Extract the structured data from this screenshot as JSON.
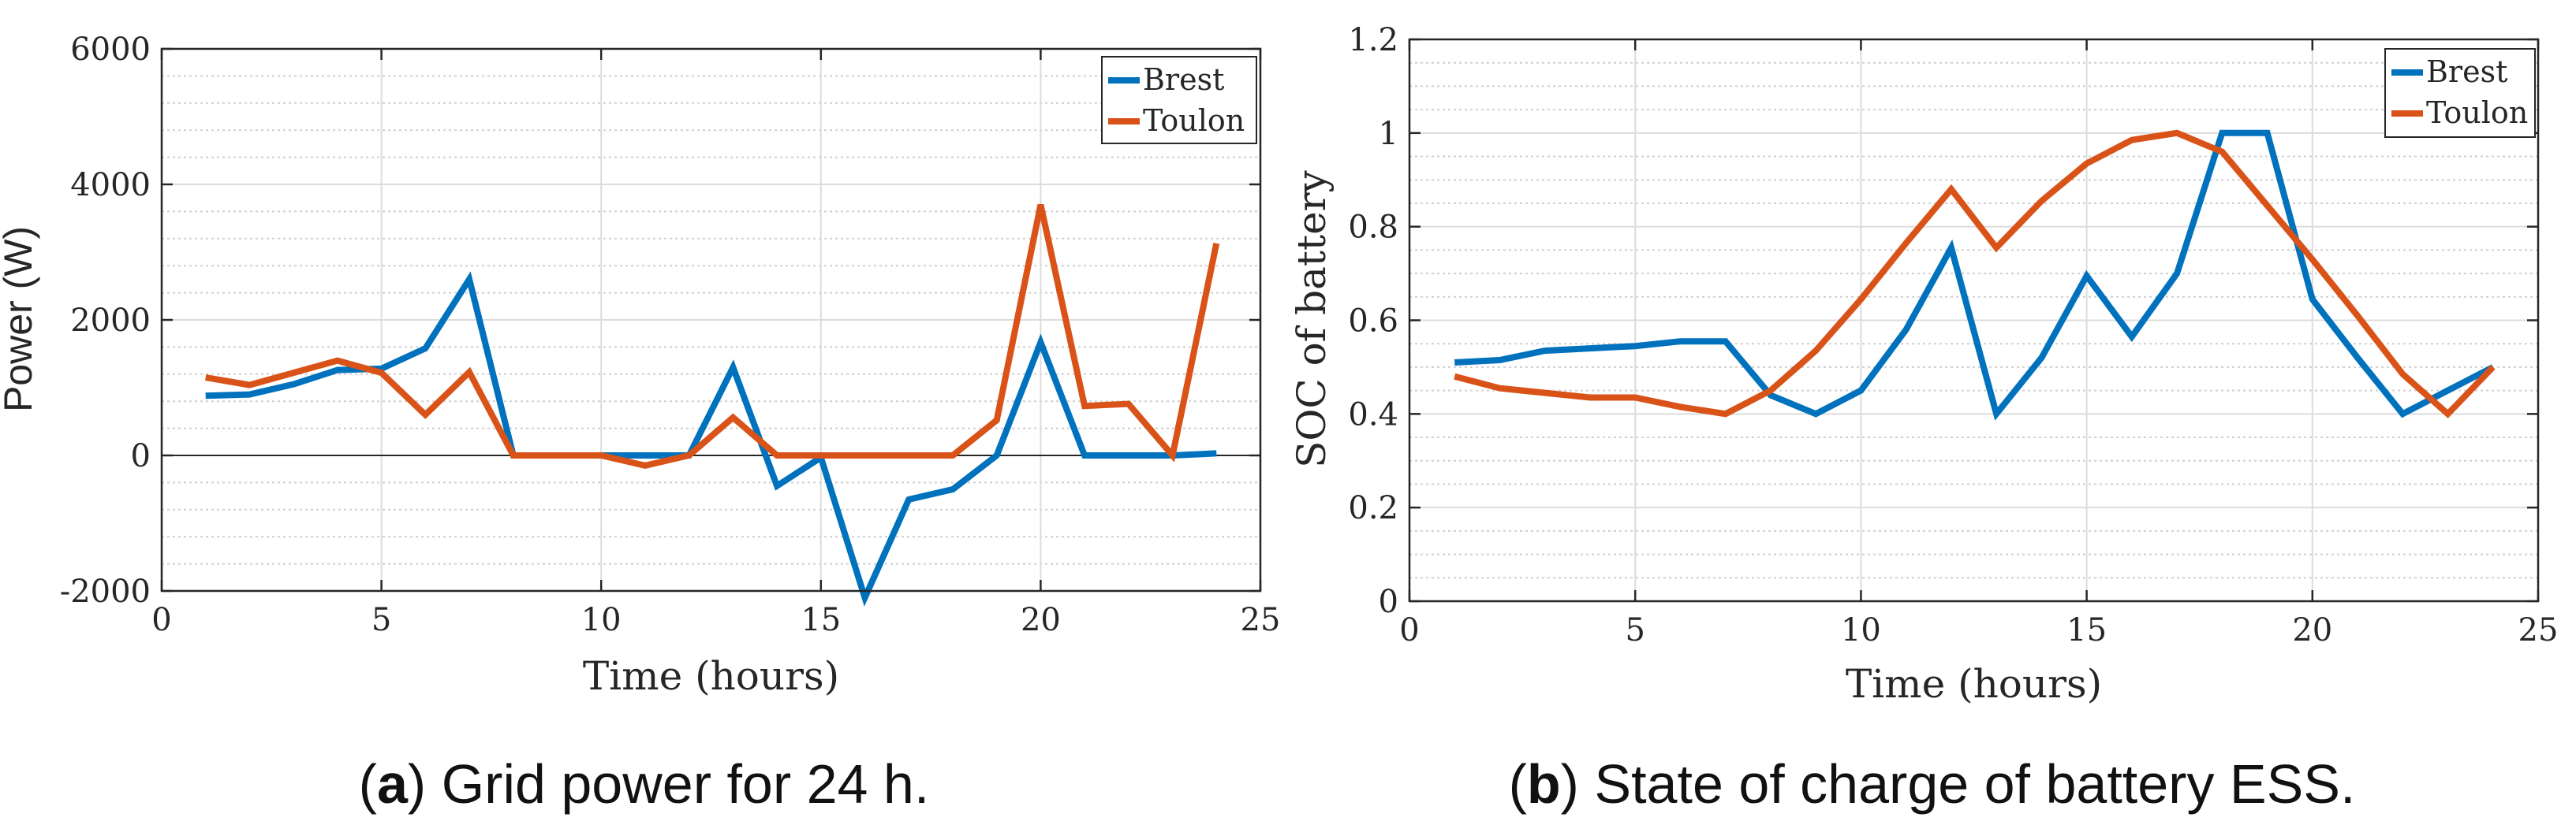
{
  "chart_data": [
    {
      "type": "line",
      "panel": "a",
      "caption_tag": "a",
      "caption_text": "Grid power for 24 h.",
      "title": "",
      "xlabel": "Time (hours)",
      "ylabel": "Power (W)",
      "xlim": [
        0,
        25
      ],
      "ylim": [
        -2000,
        6000
      ],
      "xticks": [
        0,
        5,
        10,
        15,
        20,
        25
      ],
      "xtick_labels": [
        "0",
        "5",
        "10",
        "15",
        "20",
        "25"
      ],
      "yticks": [
        -2000,
        0,
        2000,
        4000,
        6000
      ],
      "ytick_labels": [
        "-2000",
        "0",
        "2000",
        "4000",
        "6000"
      ],
      "grid": true,
      "legend": "top-right",
      "x": [
        1,
        2,
        3,
        4,
        5,
        6,
        7,
        8,
        9,
        10,
        11,
        12,
        13,
        14,
        15,
        16,
        17,
        18,
        19,
        20,
        21,
        22,
        23,
        24
      ],
      "series": [
        {
          "name": "Brest",
          "color": "#0072BD",
          "values": [
            880,
            900,
            1050,
            1260,
            1280,
            1580,
            2600,
            0,
            0,
            0,
            0,
            0,
            1300,
            -450,
            -30,
            -2100,
            -650,
            -500,
            0,
            1670,
            0,
            0,
            0,
            30
          ]
        },
        {
          "name": "Toulon",
          "color": "#D95319",
          "values": [
            1150,
            1040,
            1220,
            1400,
            1220,
            600,
            1230,
            0,
            0,
            0,
            -150,
            0,
            560,
            0,
            0,
            0,
            0,
            0,
            520,
            3700,
            730,
            760,
            0,
            3130
          ]
        }
      ]
    },
    {
      "type": "line",
      "panel": "b",
      "caption_tag": "b",
      "caption_text": "State of charge of battery ESS.",
      "title": "",
      "xlabel": "Time (hours)",
      "ylabel": "SOC of battery",
      "xlim": [
        0,
        25
      ],
      "ylim": [
        0,
        1.2
      ],
      "xticks": [
        0,
        5,
        10,
        15,
        20,
        25
      ],
      "xtick_labels": [
        "0",
        "5",
        "10",
        "15",
        "20",
        "25"
      ],
      "yticks": [
        0,
        0.2,
        0.4,
        0.6,
        0.8,
        1,
        1.2
      ],
      "ytick_labels": [
        "0",
        "0.2",
        "0.4",
        "0.6",
        "0.8",
        "1",
        "1.2"
      ],
      "grid": true,
      "legend": "top-right",
      "x": [
        1,
        2,
        3,
        4,
        5,
        6,
        7,
        8,
        9,
        10,
        11,
        12,
        13,
        14,
        15,
        16,
        17,
        18,
        19,
        20,
        21,
        22,
        23,
        24
      ],
      "series": [
        {
          "name": "Brest",
          "color": "#0072BD",
          "values": [
            0.51,
            0.515,
            0.535,
            0.54,
            0.545,
            0.555,
            0.555,
            0.44,
            0.4,
            0.45,
            0.58,
            0.755,
            0.4,
            0.52,
            0.695,
            0.565,
            0.7,
            1.0,
            1.0,
            0.645,
            0.52,
            0.4,
            0.45,
            0.5
          ]
        },
        {
          "name": "Toulon",
          "color": "#D95319",
          "values": [
            0.48,
            0.455,
            0.445,
            0.435,
            0.435,
            0.415,
            0.4,
            0.45,
            0.535,
            0.645,
            0.765,
            0.88,
            0.755,
            0.855,
            0.935,
            0.985,
            1.0,
            0.96,
            0.845,
            0.73,
            0.61,
            0.485,
            0.4,
            0.5
          ]
        }
      ]
    }
  ]
}
